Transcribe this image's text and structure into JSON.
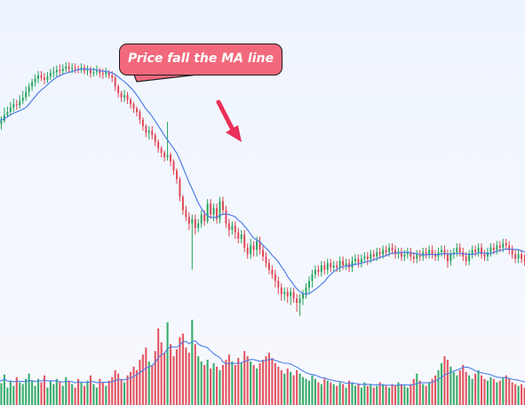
{
  "chart_data": {
    "type": "candlestick",
    "annotation": "Price fall the MA line",
    "grid": false,
    "legend": "none",
    "ma_period": 10,
    "colors": {
      "up": "#23a35a",
      "down": "#e0424f",
      "ma": "#4f7ee8",
      "callout": "#f2697c",
      "arrow": "#ea2f5a"
    },
    "candles": [
      [
        28,
        28,
        24,
        33
      ],
      [
        24,
        27,
        19,
        31
      ],
      [
        27,
        32,
        25,
        39
      ],
      [
        32,
        35,
        30,
        40
      ],
      [
        35,
        39,
        32,
        44
      ],
      [
        39,
        42,
        35,
        47
      ],
      [
        42,
        41,
        37,
        46
      ],
      [
        41,
        45,
        38,
        50
      ],
      [
        45,
        48,
        42,
        54
      ],
      [
        48,
        53,
        45,
        58
      ],
      [
        53,
        58,
        49,
        61
      ],
      [
        58,
        62,
        54,
        65
      ],
      [
        62,
        65,
        58,
        69
      ],
      [
        65,
        68,
        61,
        72
      ],
      [
        68,
        66,
        63,
        72
      ],
      [
        66,
        64,
        60,
        70
      ],
      [
        64,
        67,
        61,
        71
      ],
      [
        67,
        70,
        64,
        74
      ],
      [
        70,
        71,
        66,
        76
      ],
      [
        71,
        73,
        67,
        77
      ],
      [
        73,
        72,
        68,
        78
      ],
      [
        72,
        74,
        69,
        78
      ],
      [
        74,
        76,
        71,
        80
      ],
      [
        76,
        74,
        71,
        80
      ],
      [
        74,
        75,
        70,
        79
      ],
      [
        75,
        74,
        70,
        79
      ],
      [
        74,
        73,
        70,
        77
      ],
      [
        73,
        75,
        70,
        79
      ],
      [
        75,
        72,
        69,
        78
      ],
      [
        72,
        73,
        68,
        77
      ],
      [
        73,
        70,
        66,
        76
      ],
      [
        70,
        71,
        67,
        75
      ],
      [
        71,
        72,
        68,
        77
      ],
      [
        72,
        70,
        66,
        75
      ],
      [
        70,
        69,
        65,
        74
      ],
      [
        69,
        71,
        66,
        75
      ],
      [
        71,
        68,
        65,
        73
      ],
      [
        68,
        66,
        62,
        72
      ],
      [
        66,
        58,
        54,
        68
      ],
      [
        58,
        52,
        48,
        60
      ],
      [
        52,
        48,
        44,
        54
      ],
      [
        48,
        50,
        44,
        55
      ],
      [
        50,
        46,
        42,
        53
      ],
      [
        46,
        42,
        38,
        48
      ],
      [
        42,
        38,
        34,
        44
      ],
      [
        38,
        35,
        31,
        40
      ],
      [
        35,
        28,
        24,
        37
      ],
      [
        28,
        22,
        18,
        30
      ],
      [
        22,
        16,
        12,
        24
      ],
      [
        16,
        18,
        10,
        22
      ],
      [
        18,
        14,
        10,
        22
      ],
      [
        14,
        8,
        4,
        16
      ],
      [
        8,
        2,
        -2,
        10
      ],
      [
        2,
        -2,
        -6,
        4
      ],
      [
        -2,
        -6,
        -10,
        0
      ],
      [
        -6,
        -4,
        -9,
        26
      ],
      [
        -4,
        -10,
        -14,
        -2
      ],
      [
        -10,
        -18,
        -22,
        -8
      ],
      [
        -18,
        -26,
        -30,
        -16
      ],
      [
        -26,
        -42,
        -46,
        -24
      ],
      [
        -42,
        -54,
        -58,
        -40
      ],
      [
        -54,
        -60,
        -64,
        -50
      ],
      [
        -60,
        -66,
        -72,
        -56
      ],
      [
        -66,
        -62,
        -108,
        -58
      ],
      [
        -62,
        -70,
        -76,
        -58
      ],
      [
        -70,
        -66,
        -74,
        -62
      ],
      [
        -66,
        -58,
        -70,
        -54
      ],
      [
        -58,
        -64,
        -68,
        -54
      ],
      [
        -64,
        -48,
        -66,
        -44
      ],
      [
        -48,
        -58,
        -62,
        -44
      ],
      [
        -58,
        -52,
        -64,
        -48
      ],
      [
        -52,
        -62,
        -66,
        -48
      ],
      [
        -62,
        -46,
        -66,
        -42
      ],
      [
        -46,
        -54,
        -58,
        -42
      ],
      [
        -54,
        -66,
        -70,
        -50
      ],
      [
        -66,
        -72,
        -78,
        -62
      ],
      [
        -72,
        -68,
        -76,
        -64
      ],
      [
        -68,
        -74,
        -80,
        -64
      ],
      [
        -74,
        -80,
        -84,
        -70
      ],
      [
        -80,
        -76,
        -84,
        -72
      ],
      [
        -76,
        -88,
        -92,
        -72
      ],
      [
        -88,
        -94,
        -98,
        -84
      ],
      [
        -94,
        -86,
        -98,
        -80
      ],
      [
        -86,
        -90,
        -96,
        -82
      ],
      [
        -90,
        -82,
        -96,
        -78
      ],
      [
        -82,
        -90,
        -94,
        -78
      ],
      [
        -90,
        -96,
        -100,
        -86
      ],
      [
        -96,
        -102,
        -106,
        -92
      ],
      [
        -102,
        -108,
        -112,
        -98
      ],
      [
        -108,
        -112,
        -116,
        -104
      ],
      [
        -112,
        -118,
        -124,
        -108
      ],
      [
        -118,
        -124,
        -130,
        -114
      ],
      [
        -124,
        -130,
        -136,
        -120
      ],
      [
        -130,
        -128,
        -136,
        -124
      ],
      [
        -128,
        -132,
        -138,
        -124
      ],
      [
        -132,
        -128,
        -140,
        -124
      ],
      [
        -128,
        -134,
        -138,
        -124
      ],
      [
        -134,
        -138,
        -146,
        -130
      ],
      [
        -138,
        -134,
        -150,
        -130
      ],
      [
        -134,
        -130,
        -140,
        -126
      ],
      [
        -130,
        -124,
        -134,
        -120
      ],
      [
        -124,
        -118,
        -130,
        -114
      ],
      [
        -118,
        -112,
        -124,
        -108
      ],
      [
        -112,
        -108,
        -116,
        -104
      ],
      [
        -108,
        -110,
        -114,
        -104
      ],
      [
        -110,
        -104,
        -114,
        -100
      ],
      [
        -104,
        -108,
        -112,
        -100
      ],
      [
        -108,
        -102,
        -112,
        -98
      ],
      [
        -102,
        -106,
        -110,
        -98
      ],
      [
        -106,
        -104,
        -110,
        -100
      ],
      [
        -104,
        -106,
        -110,
        -100
      ],
      [
        -106,
        -100,
        -110,
        -96
      ],
      [
        -100,
        -104,
        -108,
        -96
      ],
      [
        -104,
        -102,
        -108,
        -98
      ],
      [
        -102,
        -106,
        -110,
        -98
      ],
      [
        -106,
        -100,
        -110,
        -96
      ],
      [
        -100,
        -98,
        -104,
        -94
      ],
      [
        -98,
        -102,
        -106,
        -94
      ],
      [
        -102,
        -98,
        -106,
        -94
      ],
      [
        -98,
        -96,
        -102,
        -92
      ],
      [
        -96,
        -98,
        -104,
        -92
      ],
      [
        -98,
        -94,
        -102,
        -90
      ],
      [
        -94,
        -96,
        -100,
        -90
      ],
      [
        -96,
        -92,
        -100,
        -88
      ],
      [
        -92,
        -94,
        -98,
        -88
      ],
      [
        -94,
        -90,
        -98,
        -86
      ],
      [
        -90,
        -92,
        -96,
        -86
      ],
      [
        -92,
        -88,
        -96,
        -84
      ],
      [
        -88,
        -90,
        -94,
        -84
      ],
      [
        -90,
        -94,
        -98,
        -86
      ],
      [
        -94,
        -92,
        -98,
        -88
      ],
      [
        -92,
        -96,
        -100,
        -88
      ],
      [
        -96,
        -94,
        -100,
        -90
      ],
      [
        -94,
        -92,
        -98,
        -88
      ],
      [
        -92,
        -96,
        -100,
        -88
      ],
      [
        -96,
        -98,
        -102,
        -92
      ],
      [
        -98,
        -94,
        -102,
        -90
      ],
      [
        -94,
        -96,
        -100,
        -90
      ],
      [
        -96,
        -92,
        -100,
        -88
      ],
      [
        -92,
        -94,
        -98,
        -88
      ],
      [
        -94,
        -90,
        -98,
        -86
      ],
      [
        -90,
        -94,
        -98,
        -86
      ],
      [
        -94,
        -96,
        -100,
        -90
      ],
      [
        -96,
        -92,
        -100,
        -88
      ],
      [
        -92,
        -90,
        -96,
        -86
      ],
      [
        -90,
        -94,
        -98,
        -86
      ],
      [
        -94,
        -100,
        -106,
        -90
      ],
      [
        -100,
        -94,
        -104,
        -90
      ],
      [
        -94,
        -92,
        -98,
        -88
      ],
      [
        -92,
        -88,
        -96,
        -84
      ],
      [
        -88,
        -92,
        -96,
        -84
      ],
      [
        -92,
        -96,
        -100,
        -88
      ],
      [
        -96,
        -100,
        -104,
        -92
      ],
      [
        -100,
        -94,
        -104,
        -90
      ],
      [
        -94,
        -90,
        -98,
        -86
      ],
      [
        -90,
        -92,
        -96,
        -86
      ],
      [
        -92,
        -88,
        -96,
        -84
      ],
      [
        -88,
        -94,
        -98,
        -84
      ],
      [
        -94,
        -96,
        -100,
        -90
      ],
      [
        -96,
        -92,
        -100,
        -88
      ],
      [
        -92,
        -88,
        -96,
        -84
      ],
      [
        -88,
        -90,
        -94,
        -84
      ],
      [
        -90,
        -86,
        -94,
        -82
      ],
      [
        -86,
        -88,
        -92,
        -82
      ],
      [
        -88,
        -84,
        -92,
        -80
      ],
      [
        -84,
        -86,
        -90,
        -80
      ],
      [
        -86,
        -90,
        -94,
        -82
      ],
      [
        -90,
        -94,
        -98,
        -86
      ],
      [
        -94,
        -98,
        -102,
        -90
      ],
      [
        -98,
        -94,
        -102,
        -90
      ],
      [
        -94,
        -98,
        -102,
        -90
      ],
      [
        -98,
        -100,
        -104,
        -94
      ],
      [
        -100,
        -96,
        -104,
        -92
      ]
    ],
    "volume": [
      0.3,
      0.25,
      0.35,
      0.2,
      0.28,
      0.22,
      0.32,
      0.26,
      0.24,
      0.3,
      0.36,
      0.28,
      0.22,
      0.3,
      0.26,
      0.34,
      0.2,
      0.28,
      0.24,
      0.3,
      0.26,
      0.22,
      0.32,
      0.28,
      0.24,
      0.2,
      0.3,
      0.26,
      0.22,
      0.28,
      0.34,
      0.24,
      0.2,
      0.3,
      0.26,
      0.22,
      0.28,
      0.32,
      0.4,
      0.36,
      0.3,
      0.26,
      0.34,
      0.38,
      0.44,
      0.4,
      0.52,
      0.58,
      0.66,
      0.5,
      0.46,
      0.62,
      0.88,
      0.72,
      0.6,
      0.95,
      0.7,
      0.56,
      0.64,
      0.78,
      0.82,
      0.66,
      0.6,
      0.98,
      0.7,
      0.56,
      0.5,
      0.46,
      0.52,
      0.42,
      0.48,
      0.44,
      0.4,
      0.46,
      0.52,
      0.58,
      0.5,
      0.46,
      0.54,
      0.48,
      0.62,
      0.56,
      0.5,
      0.46,
      0.42,
      0.48,
      0.52,
      0.56,
      0.6,
      0.54,
      0.48,
      0.44,
      0.4,
      0.36,
      0.42,
      0.38,
      0.34,
      0.4,
      0.36,
      0.32,
      0.3,
      0.28,
      0.34,
      0.3,
      0.26,
      0.24,
      0.3,
      0.28,
      0.26,
      0.24,
      0.22,
      0.26,
      0.24,
      0.2,
      0.28,
      0.26,
      0.22,
      0.24,
      0.2,
      0.26,
      0.22,
      0.24,
      0.2,
      0.22,
      0.26,
      0.24,
      0.22,
      0.2,
      0.24,
      0.22,
      0.26,
      0.24,
      0.22,
      0.2,
      0.24,
      0.3,
      0.36,
      0.28,
      0.24,
      0.22,
      0.26,
      0.3,
      0.34,
      0.4,
      0.48,
      0.56,
      0.52,
      0.44,
      0.38,
      0.34,
      0.4,
      0.46,
      0.38,
      0.34,
      0.3,
      0.36,
      0.4,
      0.34,
      0.3,
      0.28,
      0.32,
      0.3,
      0.26,
      0.28,
      0.32,
      0.34,
      0.3,
      0.26,
      0.24,
      0.22,
      0.24,
      0.2,
      0.22
    ]
  }
}
